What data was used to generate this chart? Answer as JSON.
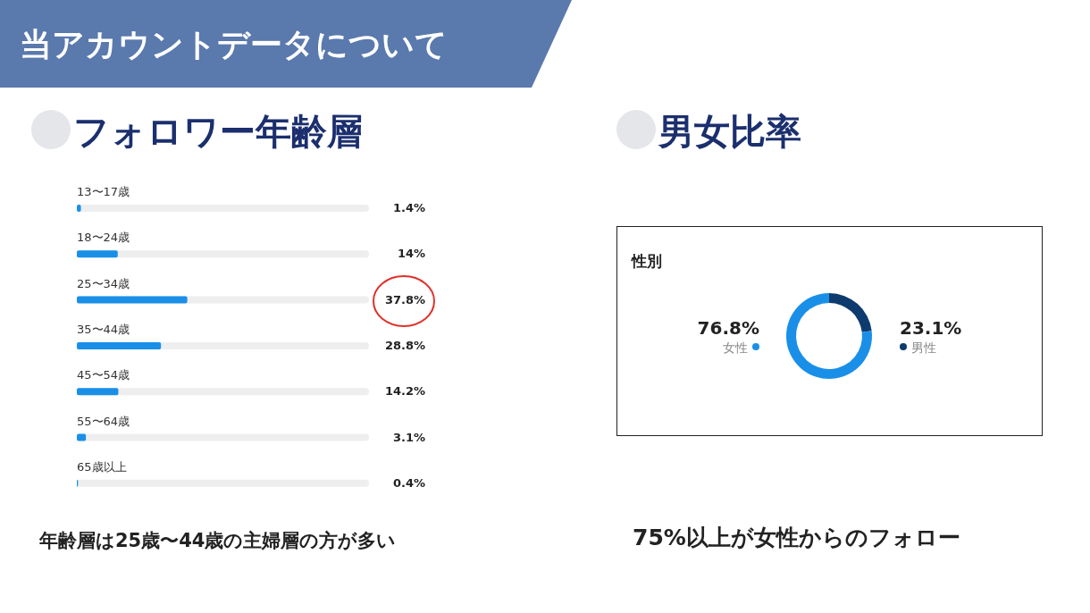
{
  "chart_data": [
    {
      "type": "other",
      "title": "当アカウントデータについて",
      "color": "#5a79ad"
    },
    {
      "type": "bar",
      "orientation": "horizontal",
      "title": "フォロワー年齢層",
      "categories": [
        "13〜17歳",
        "18〜24歳",
        "25〜34歳",
        "35〜44歳",
        "45〜54歳",
        "55〜64歳",
        "65歳以上"
      ],
      "values": [
        1.4,
        14,
        37.8,
        28.8,
        14.2,
        3.1,
        0.4
      ],
      "value_labels": [
        "1.4%",
        "14%",
        "37.8%",
        "28.8%",
        "14.2%",
        "3.1%",
        "0.4%"
      ],
      "color": "#1a8fe8",
      "xlim": [
        0,
        100
      ],
      "annotations": [
        "年齢層は25歳〜44歳の主婦層の方が多い"
      ]
    },
    {
      "type": "donut",
      "title": "男女比率",
      "subtitle": "性別",
      "categories": [
        "女性",
        "男性"
      ],
      "values": [
        76.8,
        23.1
      ],
      "value_labels": [
        "76.8%",
        "23.1%"
      ],
      "colors": [
        "#1a8fe8",
        "#0d3b6e"
      ],
      "legend": "bottom",
      "annotations": [
        "75%以上が女性からのフォロー"
      ]
    }
  ]
}
